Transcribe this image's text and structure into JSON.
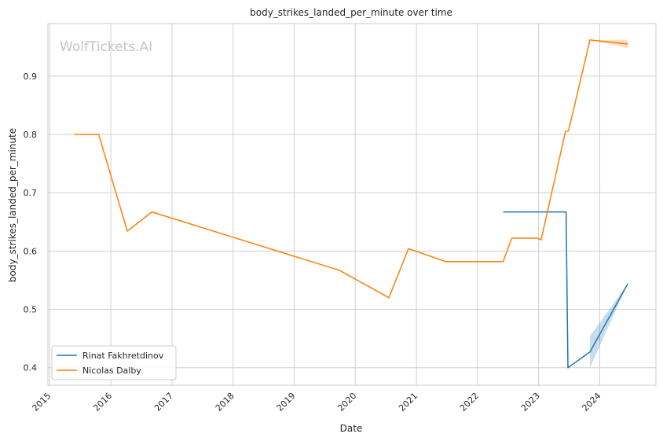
{
  "chart_data": {
    "type": "line",
    "title": "body_strikes_landed_per_minute over time",
    "xlabel": "Date",
    "ylabel": "body_strikes_landed_per_minute",
    "watermark": "WolfTickets.AI",
    "x_ticks": [
      "2015",
      "2016",
      "2017",
      "2018",
      "2019",
      "2020",
      "2021",
      "2022",
      "2023",
      "2024"
    ],
    "y_ticks": [
      "0.4",
      "0.5",
      "0.6",
      "0.7",
      "0.8",
      "0.9"
    ],
    "xlim": [
      2014.97,
      2024.92
    ],
    "ylim": [
      0.37,
      0.99
    ],
    "grid": true,
    "legend_position": "lower-left",
    "series": [
      {
        "name": "Rinat Fakhretdinov",
        "color": "#1f77b4",
        "points": [
          {
            "x": 2022.42,
            "y": 0.667
          },
          {
            "x": 2023.45,
            "y": 0.667
          },
          {
            "x": 2023.48,
            "y": 0.4
          },
          {
            "x": 2023.84,
            "y": 0.427
          },
          {
            "x": 2024.46,
            "y": 0.544
          }
        ],
        "band": [
          {
            "x": 2023.84,
            "lo": 0.4,
            "hi": 0.454
          },
          {
            "x": 2024.46,
            "lo": 0.544,
            "hi": 0.544
          }
        ]
      },
      {
        "name": "Nicolas Dalby",
        "color": "#ff7f0e",
        "points": [
          {
            "x": 2015.4,
            "y": 0.8
          },
          {
            "x": 2015.8,
            "y": 0.8
          },
          {
            "x": 2016.27,
            "y": 0.634
          },
          {
            "x": 2016.67,
            "y": 0.667
          },
          {
            "x": 2019.74,
            "y": 0.567
          },
          {
            "x": 2020.55,
            "y": 0.52
          },
          {
            "x": 2020.87,
            "y": 0.604
          },
          {
            "x": 2021.48,
            "y": 0.582
          },
          {
            "x": 2022.42,
            "y": 0.582
          },
          {
            "x": 2022.56,
            "y": 0.622
          },
          {
            "x": 2022.98,
            "y": 0.622
          },
          {
            "x": 2023.04,
            "y": 0.619
          },
          {
            "x": 2023.44,
            "y": 0.805
          },
          {
            "x": 2023.49,
            "y": 0.806
          },
          {
            "x": 2023.84,
            "y": 0.962
          },
          {
            "x": 2024.46,
            "y": 0.955
          }
        ],
        "band": [
          {
            "x": 2023.84,
            "lo": 0.962,
            "hi": 0.962
          },
          {
            "x": 2024.46,
            "lo": 0.948,
            "hi": 0.962
          }
        ]
      }
    ]
  }
}
